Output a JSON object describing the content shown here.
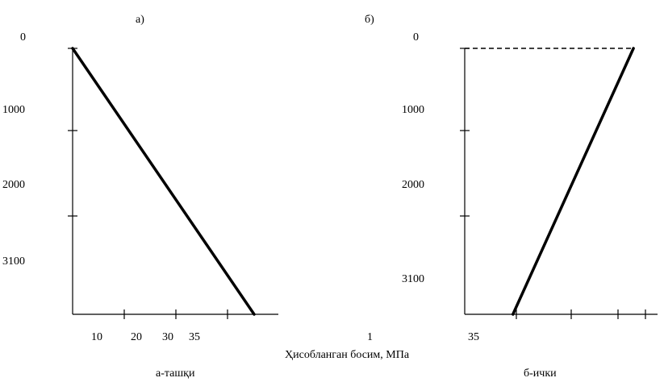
{
  "chart_data": [
    {
      "type": "line",
      "panel_label": "а)",
      "caption": "а-ташқи",
      "y_tick_labels": [
        "0",
        "1000",
        "2000",
        "3100"
      ],
      "x_tick_labels": [
        "10",
        "20",
        "30",
        "35"
      ],
      "series": [
        {
          "x": [
            0,
            40
          ],
          "y": [
            0,
            3100
          ]
        }
      ]
    },
    {
      "type": "line",
      "panel_label": "б)",
      "caption": "б-ички",
      "y_tick_labels": [
        "0",
        "1000",
        "2000",
        "3100"
      ],
      "x_tick_labels": [
        "1",
        "35"
      ],
      "reference_line": {
        "style": "dashed",
        "y": 0
      },
      "series": [
        {
          "x": [
            35,
            10
          ],
          "y": [
            0,
            3100
          ]
        }
      ]
    }
  ],
  "shared_xlabel": "Ҳисобланган босим, МПа"
}
